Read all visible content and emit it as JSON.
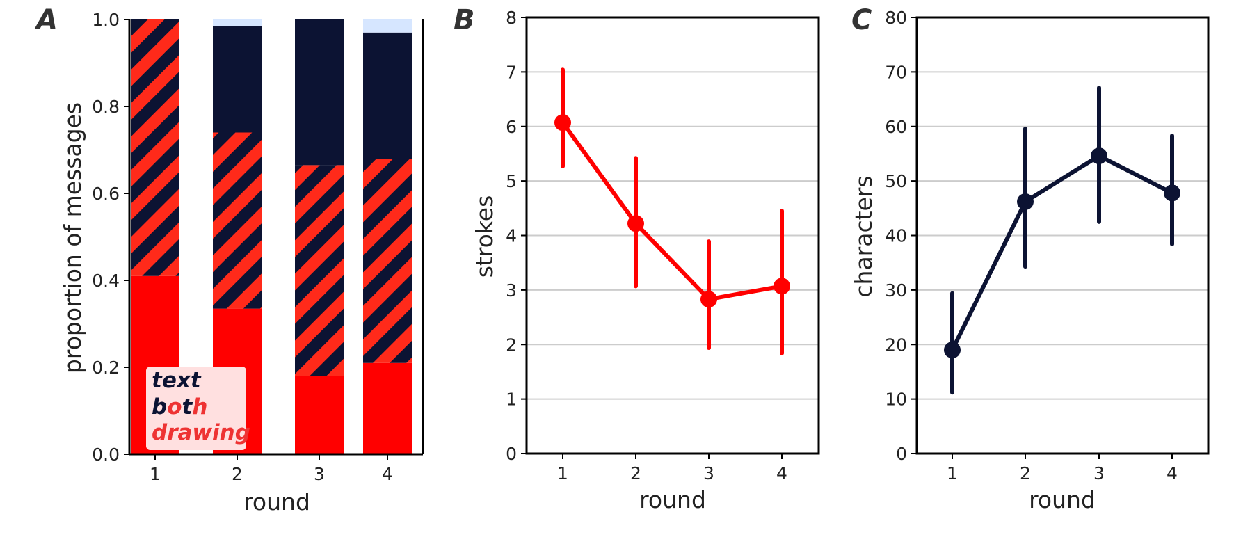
{
  "colors": {
    "drawing": "#ff0000",
    "text": "#0c1333",
    "other": "#d6e6ff",
    "grid": "#cccccc",
    "axis": "#000000",
    "legend_bg": "#ffe0e0",
    "legend_drawing": "#ee3333"
  },
  "chart_data": [
    {
      "id": "A",
      "type": "bar",
      "stacked": true,
      "panel_label": "A",
      "categories": [
        "1",
        "2",
        "3",
        "4"
      ],
      "series": [
        {
          "name": "drawing",
          "values": [
            0.41,
            0.335,
            0.18,
            0.21
          ]
        },
        {
          "name": "both",
          "values": [
            0.59,
            0.405,
            0.485,
            0.47
          ]
        },
        {
          "name": "text",
          "values": [
            0.0,
            0.245,
            0.335,
            0.29
          ]
        },
        {
          "values": [
            0.0,
            0.015,
            0.0,
            0.03
          ]
        }
      ],
      "xlabel": "round",
      "ylabel": "proportion of messages",
      "ylim": [
        0,
        1.0
      ],
      "yticks": [
        "0.0",
        "0.2",
        "0.4",
        "0.6",
        "0.8",
        "1.0"
      ],
      "grid": false,
      "legend": {
        "placement": "bottom-left",
        "text": "text",
        "both": "both",
        "drawing": "drawing"
      }
    },
    {
      "id": "B",
      "type": "line",
      "panel_label": "B",
      "x": [
        "1",
        "2",
        "3",
        "4"
      ],
      "series": [
        {
          "values": [
            6.07,
            4.22,
            2.83,
            3.07
          ],
          "ci_low": [
            5.27,
            3.07,
            1.94,
            1.84
          ],
          "ci_high": [
            7.04,
            5.42,
            3.89,
            4.45
          ]
        }
      ],
      "xlabel": "round",
      "ylabel": "strokes",
      "ylim": [
        0,
        8
      ],
      "yticks": [
        "0",
        "1",
        "2",
        "3",
        "4",
        "5",
        "6",
        "7",
        "8"
      ],
      "grid": true
    },
    {
      "id": "C",
      "type": "line",
      "panel_label": "C",
      "x": [
        "1",
        "2",
        "3",
        "4"
      ],
      "series": [
        {
          "values": [
            19.0,
            46.2,
            54.6,
            47.8
          ],
          "ci_low": [
            11.2,
            34.3,
            42.5,
            38.4
          ],
          "ci_high": [
            29.4,
            59.6,
            67.1,
            58.3
          ]
        }
      ],
      "xlabel": "round",
      "ylabel": "characters",
      "ylim": [
        0,
        80
      ],
      "yticks": [
        "0",
        "10",
        "20",
        "30",
        "40",
        "50",
        "60",
        "70",
        "80"
      ],
      "grid": true
    }
  ]
}
